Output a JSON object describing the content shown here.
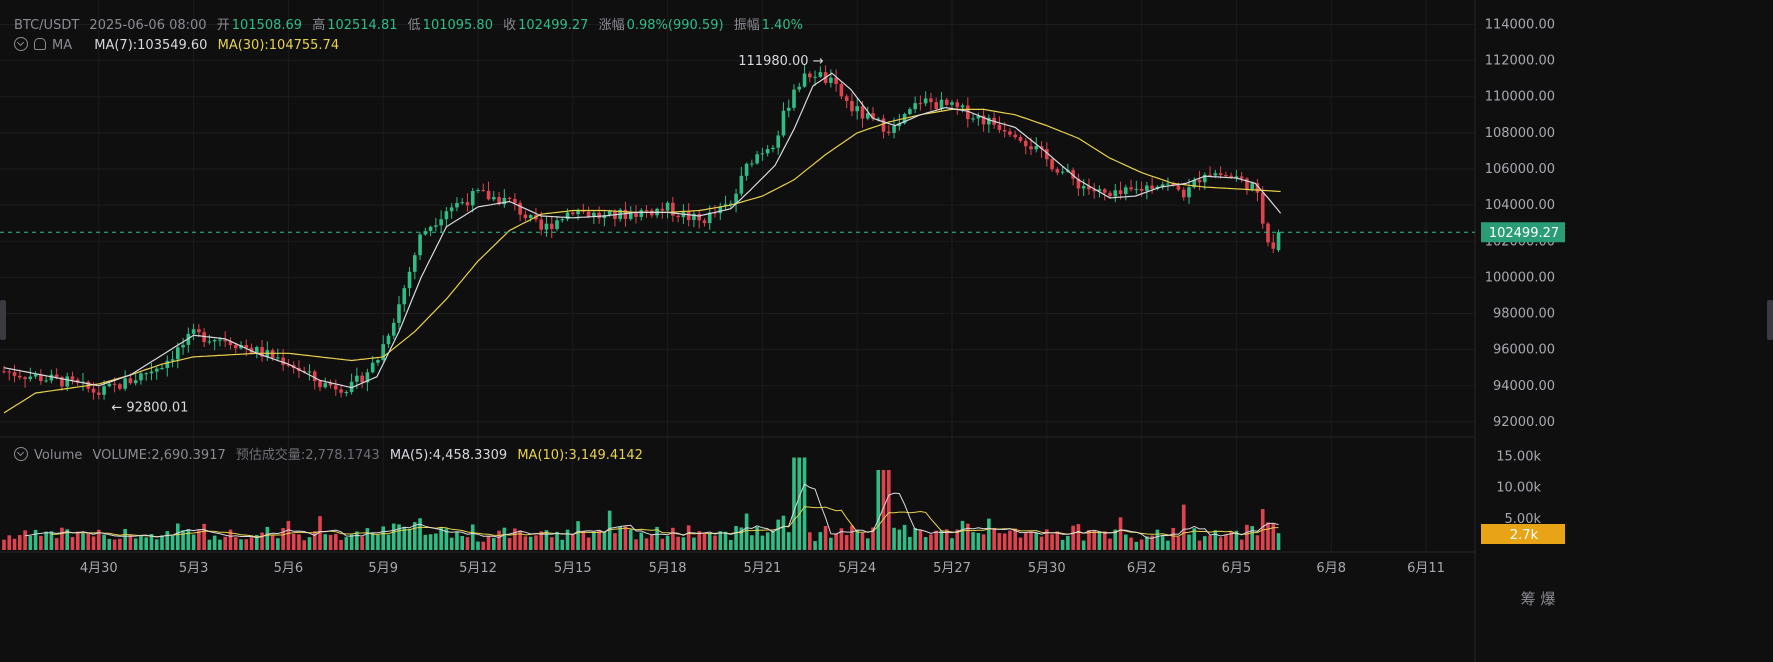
{
  "header": {
    "pair": "BTC/USDT",
    "datetime": "2025-06-06 08:00",
    "open_label": "开",
    "open": "101508.69",
    "high_label": "高",
    "high": "102514.81",
    "low_label": "低",
    "low": "101095.80",
    "close_label": "收",
    "close": "102499.27",
    "change_label": "涨幅",
    "change": "0.98%(990.59)",
    "amp_label": "振幅",
    "amp": "1.40%"
  },
  "ma_legend": {
    "name": "MA",
    "ma7": "MA(7):103549.60",
    "ma30": "MA(30):104755.74"
  },
  "volume_legend": {
    "name": "Volume",
    "volume": "VOLUME:2,690.3917",
    "est_label": "预估成交量:2,778.1743",
    "ma5": "MA(5):4,458.3309",
    "ma10": "MA(10):3,149.4142"
  },
  "colors": {
    "up": "#2fbd85",
    "down": "#e0434f",
    "ma7": "#d9d9de",
    "ma30": "#e8d24a",
    "bg": "#0f0f10",
    "grid": "#1c1c1f",
    "vol_badge": "#e8a317"
  },
  "chart_data": {
    "type": "candlestick",
    "y_axis_ticks": [
      "114000.00",
      "112000.00",
      "110000.00",
      "108000.00",
      "106000.00",
      "104000.00",
      "102000.00",
      "100000.00",
      "98000.00",
      "96000.00",
      "94000.00",
      "92000.00"
    ],
    "ylim": [
      91000,
      114800
    ],
    "volume_axis_ticks": [
      "15.00k",
      "10.00k",
      "5.00k"
    ],
    "volume_ylim": [
      0,
      16000
    ],
    "x_axis_labels": [
      {
        "label": "4月30",
        "day": 3
      },
      {
        "label": "5月3",
        "day": 6
      },
      {
        "label": "5月6",
        "day": 9
      },
      {
        "label": "5月9",
        "day": 12
      },
      {
        "label": "5月12",
        "day": 15
      },
      {
        "label": "5月15",
        "day": 18
      },
      {
        "label": "5月18",
        "day": 21
      },
      {
        "label": "5月21",
        "day": 24
      },
      {
        "label": "5月24",
        "day": 27
      },
      {
        "label": "5月27",
        "day": 30
      },
      {
        "label": "5月30",
        "day": 33
      },
      {
        "label": "6月2",
        "day": 36
      },
      {
        "label": "6月5",
        "day": 39
      },
      {
        "label": "6月8",
        "day": 42
      },
      {
        "label": "6月11",
        "day": 45
      }
    ],
    "anchors_close": [
      [
        0,
        94800
      ],
      [
        2,
        94200
      ],
      [
        3,
        93600
      ],
      [
        4,
        94300
      ],
      [
        5,
        95200
      ],
      [
        6,
        96800
      ],
      [
        7,
        96600
      ],
      [
        8,
        95900
      ],
      [
        9,
        95300
      ],
      [
        10,
        94100
      ],
      [
        11,
        93900
      ],
      [
        11.8,
        95400
      ],
      [
        12.5,
        98500
      ],
      [
        13.2,
        102400
      ],
      [
        14,
        103800
      ],
      [
        15,
        104600
      ],
      [
        16,
        104200
      ],
      [
        17,
        102600
      ],
      [
        18,
        103800
      ],
      [
        19,
        103300
      ],
      [
        20,
        103600
      ],
      [
        21,
        103800
      ],
      [
        22,
        103100
      ],
      [
        23,
        104000
      ],
      [
        23.6,
        106500
      ],
      [
        24.4,
        107600
      ],
      [
        25,
        110500
      ],
      [
        25.6,
        111400
      ],
      [
        26.2,
        110700
      ],
      [
        26.8,
        109400
      ],
      [
        27.5,
        108600
      ],
      [
        28.2,
        108200
      ],
      [
        29,
        109800
      ],
      [
        29.8,
        109500
      ],
      [
        30.5,
        109100
      ],
      [
        31.2,
        108600
      ],
      [
        32,
        108100
      ],
      [
        33,
        106500
      ],
      [
        34,
        105200
      ],
      [
        35,
        104400
      ],
      [
        35.8,
        104800
      ],
      [
        36.6,
        105300
      ],
      [
        37.4,
        104600
      ],
      [
        38,
        105900
      ],
      [
        39,
        105500
      ],
      [
        39.6,
        104900
      ],
      [
        39.9,
        102600
      ],
      [
        40.15,
        101700
      ],
      [
        40.4,
        102499.27
      ]
    ],
    "ma7_anchors": [
      [
        0,
        95000
      ],
      [
        3,
        94000
      ],
      [
        4,
        94600
      ],
      [
        5,
        95700
      ],
      [
        6,
        96800
      ],
      [
        7,
        96600
      ],
      [
        8,
        95800
      ],
      [
        9,
        95200
      ],
      [
        10,
        94300
      ],
      [
        11,
        93900
      ],
      [
        11.8,
        94500
      ],
      [
        12.5,
        97000
      ],
      [
        13.2,
        100000
      ],
      [
        14,
        102800
      ],
      [
        15,
        103900
      ],
      [
        16,
        104200
      ],
      [
        17,
        103400
      ],
      [
        18,
        103300
      ],
      [
        19,
        103400
      ],
      [
        20,
        103600
      ],
      [
        21,
        103600
      ],
      [
        22,
        103400
      ],
      [
        23,
        103800
      ],
      [
        23.6,
        104800
      ],
      [
        24.4,
        106200
      ],
      [
        25,
        108200
      ],
      [
        25.6,
        110600
      ],
      [
        26.2,
        111300
      ],
      [
        26.8,
        110400
      ],
      [
        27.5,
        108800
      ],
      [
        28.2,
        108400
      ],
      [
        29,
        109000
      ],
      [
        29.8,
        109400
      ],
      [
        30.5,
        109200
      ],
      [
        31.2,
        108700
      ],
      [
        32,
        108300
      ],
      [
        33,
        106900
      ],
      [
        34,
        105400
      ],
      [
        35,
        104400
      ],
      [
        35.8,
        104500
      ],
      [
        36.6,
        105000
      ],
      [
        37.4,
        105200
      ],
      [
        38,
        105600
      ],
      [
        39,
        105500
      ],
      [
        39.6,
        105200
      ],
      [
        40,
        104400
      ],
      [
        40.4,
        103549.6
      ]
    ],
    "ma30_anchors": [
      [
        0,
        92500
      ],
      [
        1,
        93600
      ],
      [
        3,
        94100
      ],
      [
        4,
        94600
      ],
      [
        5,
        95200
      ],
      [
        6,
        95600
      ],
      [
        7,
        95700
      ],
      [
        8,
        95800
      ],
      [
        9,
        95800
      ],
      [
        10,
        95600
      ],
      [
        11,
        95400
      ],
      [
        12,
        95600
      ],
      [
        13,
        97000
      ],
      [
        14,
        98800
      ],
      [
        15,
        100900
      ],
      [
        16,
        102600
      ],
      [
        17,
        103500
      ],
      [
        18,
        103700
      ],
      [
        19,
        103700
      ],
      [
        20,
        103600
      ],
      [
        21,
        103600
      ],
      [
        22,
        103700
      ],
      [
        23,
        104000
      ],
      [
        24,
        104500
      ],
      [
        25,
        105400
      ],
      [
        26,
        106800
      ],
      [
        27,
        108000
      ],
      [
        28,
        108600
      ],
      [
        29,
        109000
      ],
      [
        30,
        109300
      ],
      [
        31,
        109300
      ],
      [
        32,
        109000
      ],
      [
        33,
        108400
      ],
      [
        34,
        107700
      ],
      [
        35,
        106600
      ],
      [
        36,
        105800
      ],
      [
        37,
        105200
      ],
      [
        38,
        105000
      ],
      [
        39,
        104900
      ],
      [
        40,
        104800
      ],
      [
        40.4,
        104755.74
      ]
    ],
    "price_markers": [
      {
        "label": "111980.00 →",
        "day": 26.0,
        "price": 111980,
        "side": "left"
      },
      {
        "label": "← 92800.01",
        "day": 1.5,
        "price": 92800.01,
        "side": "right"
      }
    ],
    "last_price": "102499.27",
    "last_volume": "2.7k",
    "bottom_mark": "筹 爆"
  }
}
